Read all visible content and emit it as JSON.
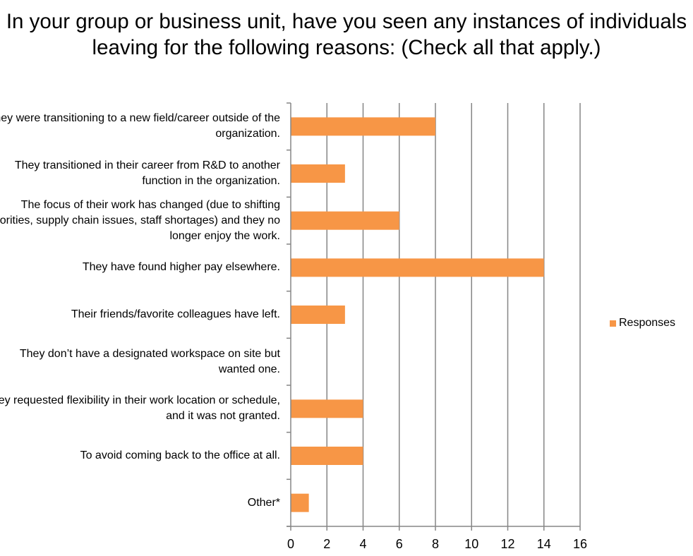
{
  "chart_data": {
    "type": "bar",
    "orientation": "horizontal",
    "title": "In your group or business unit, have you seen any instances of individuals leaving for the following reasons: (Check all that apply.)",
    "categories": [
      "They were transitioning to a new field/career outside of the organization.",
      "They transitioned in their career from R&D to another function in the organization.",
      "The focus of their work has changed (due to shifting priorities, supply chain issues, staff shortages) and they no longer enjoy the work.",
      "They have found higher pay elsewhere.",
      "Their friends/favorite colleagues have left.",
      "They don’t have a designated workspace on site but wanted one.",
      "They requested flexibility in their work location or schedule, and it was not granted.",
      "To avoid coming back to the office at all.",
      "Other*"
    ],
    "series": [
      {
        "name": "Responses",
        "values": [
          8,
          3,
          6,
          14,
          3,
          0,
          4,
          4,
          1
        ],
        "color": "#F79646"
      }
    ],
    "xlim": [
      0,
      16
    ],
    "x_ticks": [
      0,
      2,
      4,
      6,
      8,
      10,
      12,
      14,
      16
    ],
    "grid": "vertical",
    "legend_position": "right"
  }
}
